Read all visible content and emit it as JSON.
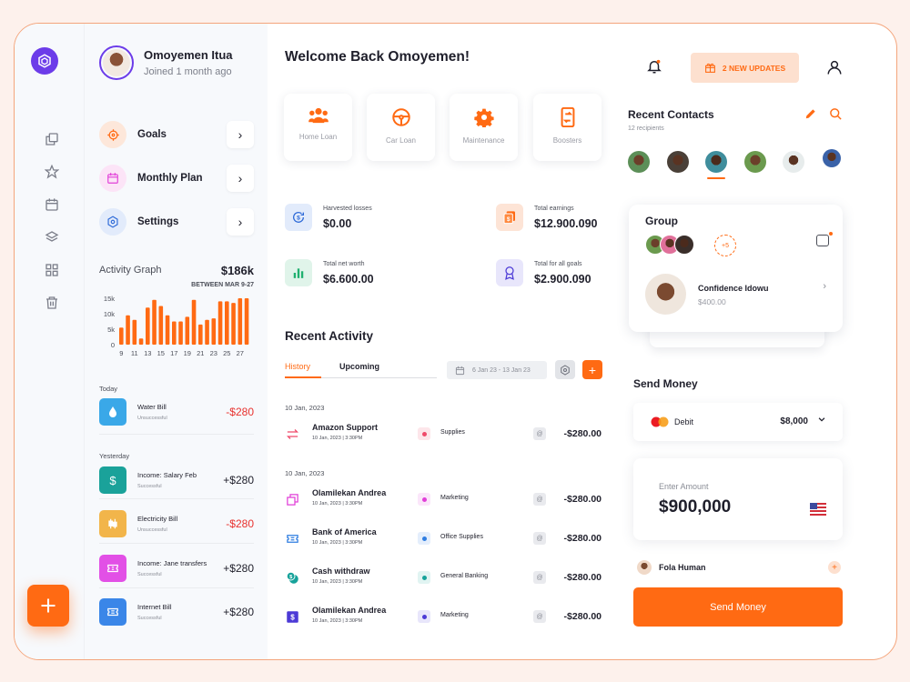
{
  "profile": {
    "name": "Omoyemen Itua",
    "joined": "Joined 1 month ago"
  },
  "menu": [
    {
      "label": "Goals",
      "icon": "target-icon"
    },
    {
      "label": "Monthly Plan",
      "icon": "calendar-icon"
    },
    {
      "label": "Settings",
      "icon": "gear-icon"
    }
  ],
  "activity_graph": {
    "title": "Activity Graph",
    "amount": "$186k",
    "range": "BETWEEN MAR 9-27"
  },
  "chart_data": {
    "type": "bar",
    "title": "Activity Graph",
    "ytick_labels": [
      "15k",
      "10k",
      "5k",
      "0"
    ],
    "xtick_labels": [
      "9",
      "11",
      "13",
      "15",
      "17",
      "19",
      "21",
      "23",
      "25",
      "27"
    ],
    "ylim": [
      0,
      15000
    ],
    "values": [
      5500,
      9500,
      8000,
      2000,
      12000,
      14500,
      12500,
      9500,
      7500,
      7500,
      9000,
      14500,
      6500,
      8000,
      8500,
      14000,
      14000,
      13500,
      15000,
      15000
    ],
    "color": "#ff6a13"
  },
  "today_label": "Today",
  "yesterday_label": "Yesterday",
  "transactions": [
    {
      "name": "Water Bill",
      "status": "Unsuccessful",
      "amount": "-$280",
      "color": "#3aa8e8",
      "icon": "drop-icon"
    },
    {
      "name": "Income: Salary Feb",
      "status": "Successful",
      "amount": "+$280",
      "color": "#1aa29a",
      "icon": "dollar-icon"
    },
    {
      "name": "Electricity Bill",
      "status": "Unsuccessful",
      "amount": "-$280",
      "color": "#f2b54a",
      "icon": "candles-icon"
    },
    {
      "name": "Income: Jane transfers",
      "status": "Successful",
      "amount": "+$280",
      "color": "#e250e6",
      "icon": "ticket-icon"
    },
    {
      "name": "Internet Bill",
      "status": "Successful",
      "amount": "+$280",
      "color": "#3a86e8",
      "icon": "voucher-icon"
    }
  ],
  "welcome": "Welcome Back Omoyemen!",
  "quick_actions": [
    {
      "label": "Home Loan",
      "icon": "people-icon"
    },
    {
      "label": "Car Loan",
      "icon": "steering-wheel-icon"
    },
    {
      "label": "Maintenance",
      "icon": "gear-icon"
    },
    {
      "label": "Boosters",
      "icon": "booster-icon"
    }
  ],
  "stats": [
    {
      "label": "Harvested losses",
      "value": "$0.00",
      "icon": "refresh-dollar-icon"
    },
    {
      "label": "Total earnings",
      "value": "$12.900.090",
      "icon": "document-dollar-icon"
    },
    {
      "label": "Total net worth",
      "value": "$6.600.00",
      "icon": "bar-chart-icon"
    },
    {
      "label": "Total for all goals",
      "value": "$2.900.090",
      "icon": "medal-icon"
    }
  ],
  "recent_activity": {
    "title": "Recent Activity",
    "tabs": [
      "History",
      "Upcoming"
    ],
    "date_range": "6 Jan 23 - 13 Jan 23",
    "group1_date": "10 Jan, 2023",
    "group2_date": "10 Jan, 2023",
    "rows": [
      {
        "name": "Amazon Support",
        "date": "10 Jan, 2023 | 3:30PM",
        "category": "Supplies",
        "amount": "-$280.00",
        "icon": "transfer-icon",
        "icon_color": "#ef4a6a",
        "dot_color": "#ef4a6a",
        "dot_bg": "#fde6ea"
      },
      {
        "name": "Olamilekan Andrea",
        "date": "10 Jan, 2023 | 3:30PM",
        "category": "Marketing",
        "amount": "-$280.00",
        "icon": "copy-icon",
        "icon_color": "#e13fd8",
        "dot_color": "#e13fd8",
        "dot_bg": "#fbe6fa"
      },
      {
        "name": "Bank of America",
        "date": "10 Jan, 2023 | 3:30PM",
        "category": "Office Supplies",
        "amount": "-$280.00",
        "icon": "voucher-icon",
        "icon_color": "#2f7de1",
        "dot_color": "#2f7de1",
        "dot_bg": "#e4eefc"
      },
      {
        "name": "Cash withdraw",
        "date": "10 Jan, 2023 | 3:30PM",
        "category": "General Banking",
        "amount": "-$280.00",
        "icon": "coins-icon",
        "icon_color": "#16a29a",
        "dot_color": "#16a29a",
        "dot_bg": "#e1f4f2"
      },
      {
        "name": "Olamilekan Andrea",
        "date": "10 Jan, 2023 | 3:30PM",
        "category": "Marketing",
        "amount": "-$280.00",
        "icon": "dollar-square-icon",
        "icon_color": "#4c3ad6",
        "dot_color": "#4c3ad6",
        "dot_bg": "#e8e6fb"
      }
    ]
  },
  "header": {
    "updates": "2 NEW UPDATES"
  },
  "recent_contacts": {
    "title": "Recent Contacts",
    "subtitle": "12 recipients"
  },
  "group": {
    "title": "Group",
    "more": "+5",
    "member_name": "Confidence Idowu",
    "member_amount": "$400.00"
  },
  "send_money": {
    "title": "Send Money",
    "card_type": "Debit",
    "balance": "$8,000",
    "enter_amount_label": "Enter Amount",
    "amount": "$900,000",
    "recipient": "Fola Human",
    "button": "Send Money"
  }
}
